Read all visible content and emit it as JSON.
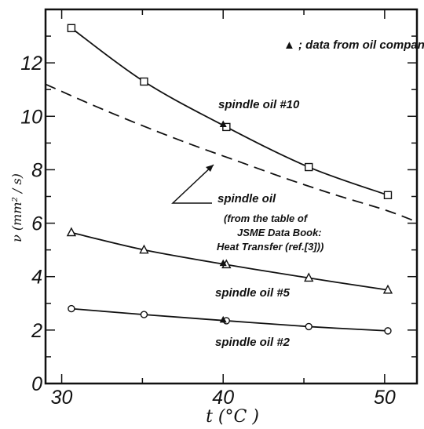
{
  "chart_data": {
    "type": "line",
    "xlabel": "t (°C )",
    "ylabel": "ν  (mm² / s)",
    "xlim": [
      29,
      52
    ],
    "ylim": [
      0,
      14
    ],
    "x_ticks": [
      "30",
      "40",
      "50"
    ],
    "y_ticks": [
      "0",
      "2",
      "4",
      "6",
      "8",
      "10",
      "12"
    ],
    "grid": false,
    "legend": {
      "marker": "triangle-filled",
      "text": "▲ ; data from oil company",
      "placement": "top-right"
    },
    "series": [
      {
        "name": "spindle oil #10",
        "marker": "square",
        "line": "solid",
        "x": [
          30.6,
          35.1,
          40.2,
          45.3,
          50.2
        ],
        "y": [
          13.3,
          11.3,
          9.6,
          8.1,
          7.05
        ],
        "company_point": {
          "x": 40.0,
          "y": 9.7
        }
      },
      {
        "name": "spindle oil",
        "marker": "none",
        "line": "dashed",
        "x": [
          29,
          32,
          35,
          38,
          41,
          44,
          47,
          50,
          52
        ],
        "y": [
          11.2,
          10.4,
          9.65,
          8.95,
          8.3,
          7.65,
          7.05,
          6.5,
          6.05
        ]
      },
      {
        "name": "spindle oil #5",
        "marker": "triangle",
        "line": "solid",
        "x": [
          30.6,
          35.1,
          40.2,
          45.3,
          50.2
        ],
        "y": [
          5.65,
          5.0,
          4.45,
          3.95,
          3.5
        ],
        "company_point": {
          "x": 40.0,
          "y": 4.5
        }
      },
      {
        "name": "spindle oil #2",
        "marker": "circle",
        "line": "solid",
        "x": [
          30.6,
          35.1,
          40.2,
          45.3,
          50.2
        ],
        "y": [
          2.8,
          2.58,
          2.35,
          2.13,
          1.97
        ],
        "company_point": {
          "x": 40.0,
          "y": 2.38
        }
      }
    ],
    "annotations": [
      {
        "id": "label_10",
        "text": "spindle oil #10"
      },
      {
        "id": "label_dashed",
        "text": "spindle oil"
      },
      {
        "id": "note_1",
        "text": "(from the table of"
      },
      {
        "id": "note_2",
        "text": "JSME Data Book:"
      },
      {
        "id": "note_3",
        "text": "Heat Transfer (ref.[3]))"
      },
      {
        "id": "label_5",
        "text": "spindle oil #5"
      },
      {
        "id": "label_2",
        "text": "spindle oil #2"
      }
    ]
  }
}
